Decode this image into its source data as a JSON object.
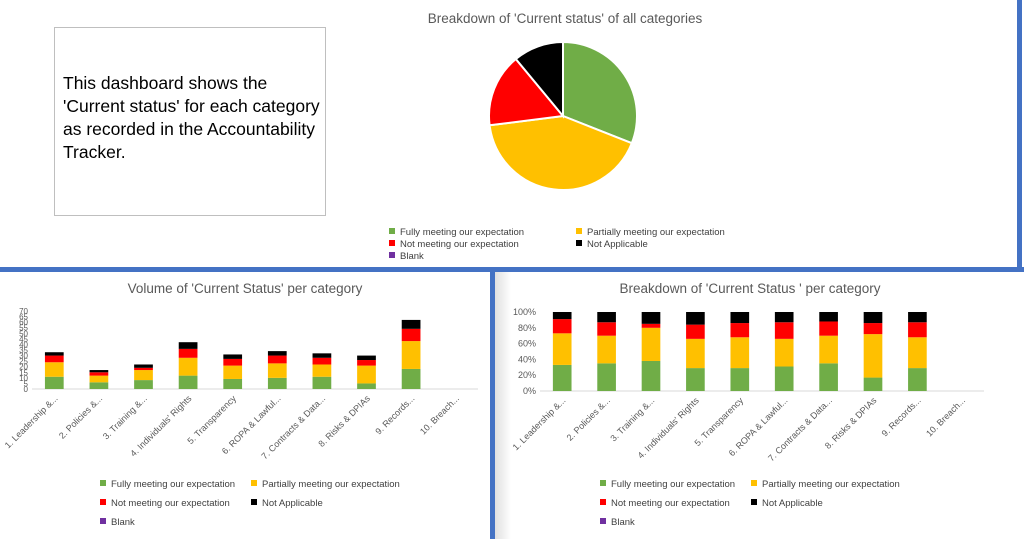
{
  "textbox": "This dashboard shows the 'Current status' for each category as recorded in the Accountability Tracker.",
  "colors": {
    "fully": "#70ad47",
    "partial": "#ffc000",
    "not": "#ff0000",
    "na": "#000000",
    "blank": "#7030a0",
    "separator": "#4472c4"
  },
  "legend": {
    "fully": "Fully meeting our expectation",
    "partial": "Partially meeting our expectation",
    "not": "Not meeting our expectation",
    "na": "Not Applicable",
    "blank": "Blank"
  },
  "chart_data": [
    {
      "type": "pie",
      "title": "Breakdown of 'Current status' of all categories",
      "series": [
        {
          "name": "Fully meeting our expectation",
          "value": 31
        },
        {
          "name": "Partially meeting our expectation",
          "value": 42
        },
        {
          "name": "Not meeting our expectation",
          "value": 16
        },
        {
          "name": "Not Applicable",
          "value": 11
        },
        {
          "name": "Blank",
          "value": 0
        }
      ],
      "legend_position": "bottom"
    },
    {
      "type": "bar",
      "stacked": true,
      "title": "Volume of 'Current Status' per category",
      "categories": [
        "1. Leadership &...",
        "2. Policies &...",
        "3. Training &...",
        "4. Individuals' Rights",
        "5. Transparency",
        "6. ROPA & Lawful...",
        "7. Contracts & Data...",
        "8. Risks & DPIAs",
        "9. Records...",
        "10. Breach..."
      ],
      "series": [
        {
          "name": "Fully meeting our expectation",
          "values": [
            11,
            6,
            8,
            12,
            9,
            10,
            11,
            5,
            18,
            0
          ]
        },
        {
          "name": "Partially meeting our expectation",
          "values": [
            13,
            6,
            9,
            16,
            12,
            13,
            11,
            16,
            25,
            0
          ]
        },
        {
          "name": "Not meeting our expectation",
          "values": [
            6,
            3,
            2,
            8,
            6,
            7,
            6,
            5,
            11,
            0
          ]
        },
        {
          "name": "Not Applicable",
          "values": [
            3,
            2,
            3,
            6,
            4,
            4,
            4,
            4,
            8,
            0
          ]
        },
        {
          "name": "Blank",
          "values": [
            0,
            0,
            0,
            0,
            0,
            0,
            0,
            0,
            0,
            0
          ]
        }
      ],
      "ylim": [
        0,
        70
      ],
      "yticks": [
        0,
        5,
        10,
        15,
        20,
        25,
        30,
        35,
        40,
        45,
        50,
        55,
        60,
        65,
        70
      ],
      "legend_position": "bottom"
    },
    {
      "type": "bar",
      "stacked": true,
      "percent": true,
      "title": "Breakdown of 'Current Status ' per category",
      "categories": [
        "1. Leadership &...",
        "2. Policies &...",
        "3. Training &...",
        "4. Individuals' Rights",
        "5. Transparency",
        "6. ROPA & Lawful...",
        "7. Contracts & Data...",
        "8. Risks & DPIAs",
        "9. Records...",
        "10. Breach..."
      ],
      "series": [
        {
          "name": "Fully meeting our expectation",
          "values": [
            33,
            35,
            38,
            29,
            29,
            31,
            35,
            17,
            29,
            0
          ]
        },
        {
          "name": "Partially meeting our expectation",
          "values": [
            40,
            35,
            42,
            37,
            39,
            35,
            35,
            55,
            39,
            0
          ]
        },
        {
          "name": "Not meeting our expectation",
          "values": [
            18,
            17,
            5,
            18,
            18,
            21,
            18,
            14,
            19,
            0
          ]
        },
        {
          "name": "Not Applicable",
          "values": [
            9,
            13,
            15,
            16,
            14,
            13,
            12,
            14,
            13,
            0
          ]
        },
        {
          "name": "Blank",
          "values": [
            0,
            0,
            0,
            0,
            0,
            0,
            0,
            0,
            0,
            0
          ]
        }
      ],
      "ylim": [
        0,
        100
      ],
      "yticks": [
        "0%",
        "20%",
        "40%",
        "60%",
        "80%",
        "100%"
      ],
      "legend_position": "bottom"
    }
  ]
}
